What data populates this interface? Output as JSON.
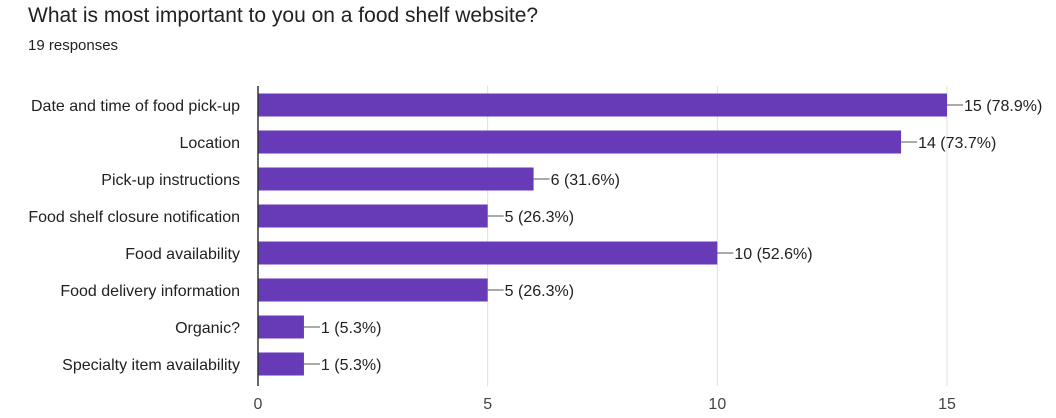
{
  "header": {
    "title": "What is most important to you on a food shelf website?",
    "responses": "19 responses"
  },
  "colors": {
    "bar": "#673ab7",
    "grid": "#e0e0e0",
    "axis": "#333333",
    "text": "#202124"
  },
  "chart_data": {
    "type": "bar",
    "orientation": "horizontal",
    "categories": [
      "Date and time of food pick-up",
      "Location",
      "Pick-up instructions",
      "Food shelf closure notification",
      "Food availability",
      "Food delivery information",
      "Organic?",
      "Specialty item availability"
    ],
    "values": [
      15,
      14,
      6,
      5,
      10,
      5,
      1,
      1
    ],
    "data_labels": [
      "15 (78.9%)",
      "14 (73.7%)",
      "6 (31.6%)",
      "5 (26.3%)",
      "10 (52.6%)",
      "5 (26.3%)",
      "1 (5.3%)",
      "1 (5.3%)"
    ],
    "xlim": [
      0,
      15
    ],
    "xticks": [
      0,
      5,
      10,
      15
    ],
    "xtick_labels": [
      "0",
      "5",
      "10",
      "15"
    ],
    "grid": true,
    "legend": "none"
  }
}
